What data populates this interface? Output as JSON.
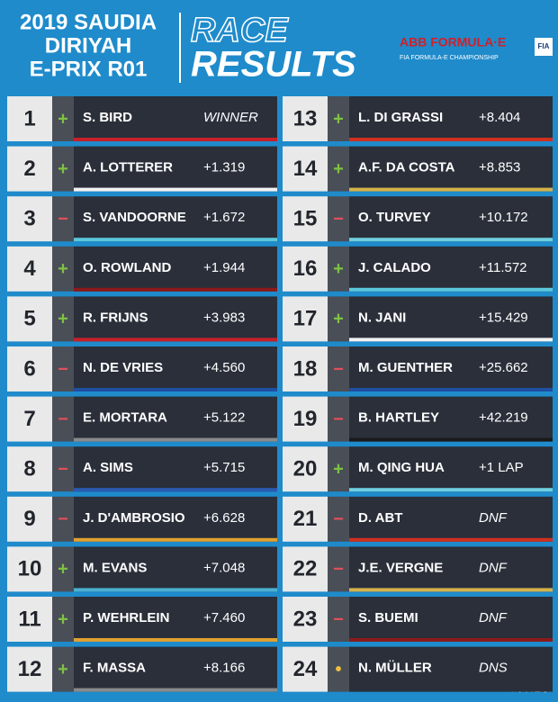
{
  "header": {
    "event": [
      "2019 SAUDIA",
      "DIRIYAH",
      "E-PRIX R01"
    ],
    "title_outline": "RACE",
    "title": "RESULTS",
    "logo": {
      "brand": "ABB FORMULA·E",
      "championship": "FIA FORMULA-E CHAMPIONSHIP",
      "badge": "FIA"
    }
  },
  "results": [
    {
      "position": 1,
      "indicator": "+",
      "driver": "S. BIRD",
      "gap": "WINNER",
      "color": "#c8202a"
    },
    {
      "position": 2,
      "indicator": "+",
      "driver": "A. LOTTERER",
      "gap": "+1.319",
      "color": "#f2f2f2"
    },
    {
      "position": 3,
      "indicator": "−",
      "driver": "S. VANDOORNE",
      "gap": "+1.672",
      "color": "#5bc8dc"
    },
    {
      "position": 4,
      "indicator": "+",
      "driver": "O. ROWLAND",
      "gap": "+1.944",
      "color": "#8a1a1a"
    },
    {
      "position": 5,
      "indicator": "+",
      "driver": "R. FRIJNS",
      "gap": "+3.983",
      "color": "#c8202a"
    },
    {
      "position": 6,
      "indicator": "−",
      "driver": "N. DE VRIES",
      "gap": "+4.560",
      "color": "#1e4fa0"
    },
    {
      "position": 7,
      "indicator": "−",
      "driver": "E. MORTARA",
      "gap": "+5.122",
      "color": "#8a8a8a"
    },
    {
      "position": 8,
      "indicator": "−",
      "driver": "A. SIMS",
      "gap": "+5.715",
      "color": "#2a5ab0"
    },
    {
      "position": 9,
      "indicator": "−",
      "driver": "J. D'AMBROSIO",
      "gap": "+6.628",
      "color": "#e0a030"
    },
    {
      "position": 10,
      "indicator": "+",
      "driver": "M. EVANS",
      "gap": "+7.048",
      "color": "#4ab0d0"
    },
    {
      "position": 11,
      "indicator": "+",
      "driver": "P. WEHRLEIN",
      "gap": "+7.460",
      "color": "#e0a030"
    },
    {
      "position": 12,
      "indicator": "+",
      "driver": "F. MASSA",
      "gap": "+8.166",
      "color": "#8a8a8a"
    },
    {
      "position": 13,
      "indicator": "+",
      "driver": "L. DI GRASSI",
      "gap": "+8.404",
      "color": "#d03020"
    },
    {
      "position": 14,
      "indicator": "+",
      "driver": "A.F. DA COSTA",
      "gap": "+8.853",
      "color": "#d4b24a"
    },
    {
      "position": 15,
      "indicator": "−",
      "driver": "O. TURVEY",
      "gap": "+10.172",
      "color": "#6ecfe0"
    },
    {
      "position": 16,
      "indicator": "+",
      "driver": "J. CALADO",
      "gap": "+11.572",
      "color": "#5bc8dc"
    },
    {
      "position": 17,
      "indicator": "+",
      "driver": "N. JANI",
      "gap": "+15.429",
      "color": "#f2f2f2"
    },
    {
      "position": 18,
      "indicator": "−",
      "driver": "M. GUENTHER",
      "gap": "+25.662",
      "color": "#1e4fa0"
    },
    {
      "position": 19,
      "indicator": "−",
      "driver": "B. HARTLEY",
      "gap": "+42.219",
      "color": "#1a1a1a"
    },
    {
      "position": 20,
      "indicator": "+",
      "driver": "M. QING HUA",
      "gap": "+1 LAP",
      "color": "#6ecfe0"
    },
    {
      "position": 21,
      "indicator": "−",
      "driver": "D. ABT",
      "gap": "DNF",
      "color": "#d03020"
    },
    {
      "position": 22,
      "indicator": "−",
      "driver": "J.E. VERGNE",
      "gap": "DNF",
      "color": "#d4b24a"
    },
    {
      "position": 23,
      "indicator": "−",
      "driver": "S. BUEMI",
      "gap": "DNF",
      "color": "#8a1a1a"
    },
    {
      "position": 24,
      "indicator": "•",
      "driver": "N. MÜLLER",
      "gap": "DNS",
      "color": "#2a2f3a"
    }
  ],
  "watermark": "汽车之家"
}
